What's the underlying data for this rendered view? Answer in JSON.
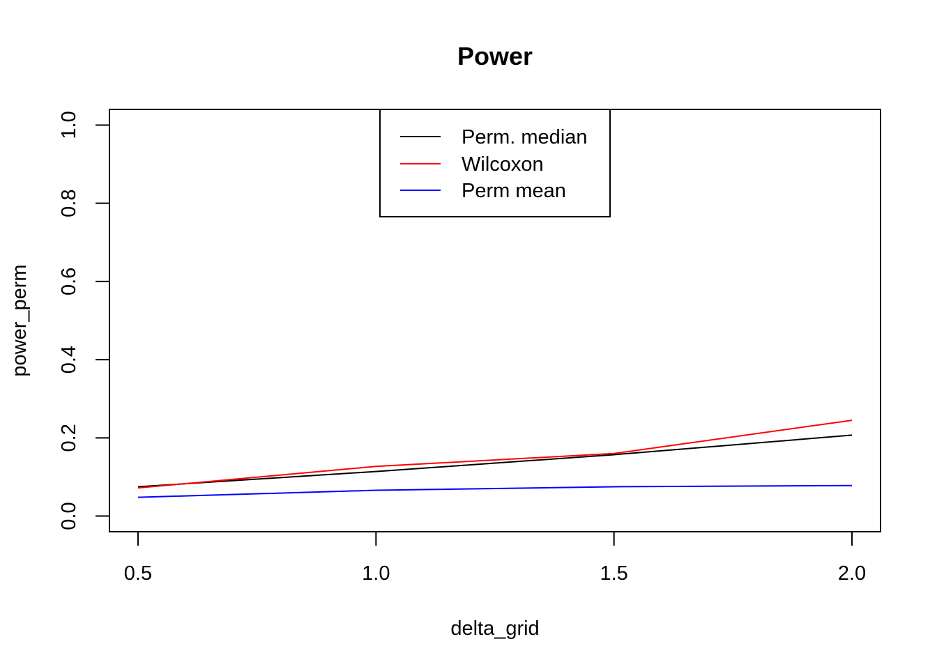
{
  "chart_data": {
    "type": "line",
    "title": "Power",
    "xlabel": "delta_grid",
    "ylabel": "power_perm",
    "x": [
      0.5,
      1.0,
      1.5,
      2.0
    ],
    "xlim": [
      0.44,
      2.06
    ],
    "ylim": [
      -0.04,
      1.04
    ],
    "x_ticks": [
      "0.5",
      "1.0",
      "1.5",
      "2.0"
    ],
    "y_ticks": [
      "0.0",
      "0.2",
      "0.4",
      "0.6",
      "0.8",
      "1.0"
    ],
    "grid": false,
    "legend_position": "top-center",
    "series": [
      {
        "name": "Perm. median",
        "color": "#000000",
        "values": [
          0.075,
          0.114,
          0.157,
          0.207
        ]
      },
      {
        "name": "Wilcoxon",
        "color": "#ff0000",
        "values": [
          0.072,
          0.127,
          0.16,
          0.245
        ]
      },
      {
        "name": "Perm mean",
        "color": "#0000ff",
        "values": [
          0.048,
          0.066,
          0.075,
          0.078
        ]
      }
    ]
  }
}
